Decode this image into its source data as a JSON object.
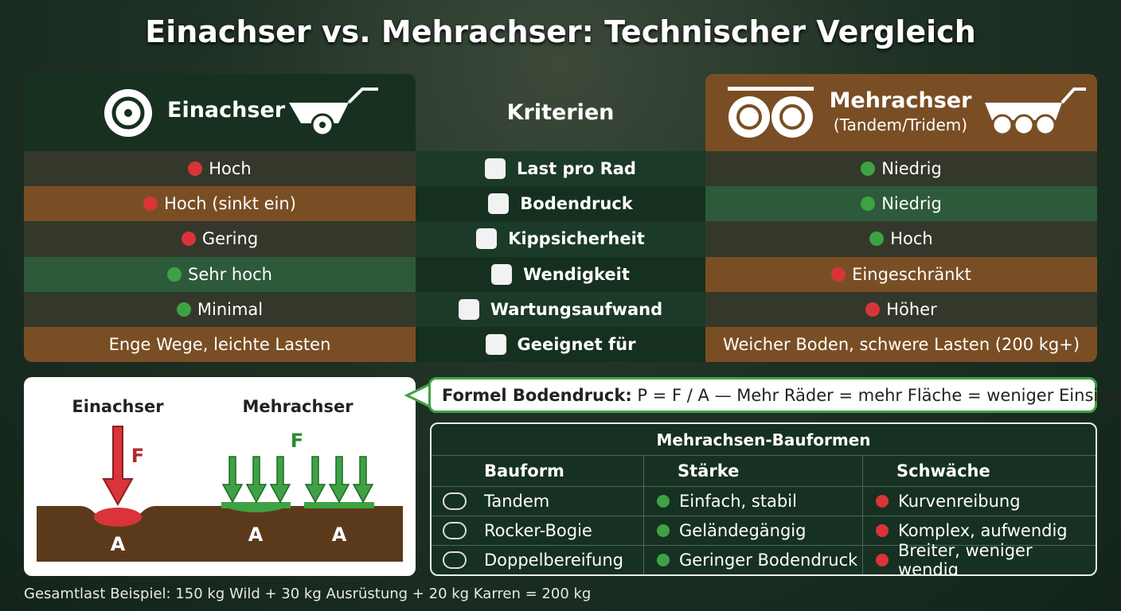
{
  "title": "Einachser vs. Mehrachser: Technischer Vergleich",
  "comparison": {
    "left_header": "Einachser",
    "center_header": "Kriterien",
    "right_header": {
      "title": "Mehrachser",
      "subtitle": "(Tandem/Tridem)"
    },
    "rows": [
      {
        "left": {
          "text": "Hoch",
          "dot": "red"
        },
        "criterion": "Last pro Rad",
        "right": {
          "text": "Niedrig",
          "dot": "green"
        }
      },
      {
        "left": {
          "text": "Hoch (sinkt ein)",
          "dot": "red"
        },
        "criterion": "Bodendruck",
        "right": {
          "text": "Niedrig",
          "dot": "green"
        }
      },
      {
        "left": {
          "text": "Gering",
          "dot": "red"
        },
        "criterion": "Kippsicherheit",
        "right": {
          "text": "Hoch",
          "dot": "green"
        }
      },
      {
        "left": {
          "text": "Sehr hoch",
          "dot": "green"
        },
        "criterion": "Wendigkeit",
        "right": {
          "text": "Eingeschränkt",
          "dot": "red"
        }
      },
      {
        "left": {
          "text": "Minimal",
          "dot": "green"
        },
        "criterion": "Wartungsaufwand",
        "right": {
          "text": "Höher",
          "dot": "red"
        }
      },
      {
        "left": {
          "text": "Enge Wege, leichte Lasten"
        },
        "criterion": "Geeignet für",
        "right": {
          "text": "Weicher Boden, schwere Lasten (200 kg+)"
        }
      }
    ]
  },
  "diagram": {
    "labels": [
      "Einachser",
      "Mehrachser"
    ],
    "force_labels": [
      "F",
      "F"
    ],
    "area_labels": [
      "A",
      "A",
      "A"
    ]
  },
  "formula": {
    "label": "Formel Bodendruck:",
    "text": "P = F / A — Mehr Räder = mehr Fläche = weniger Einsinken"
  },
  "table": {
    "title": "Mehrachsen-Bauformen",
    "headers": [
      "Bauform",
      "Stärke",
      "Schwäche"
    ],
    "rows": [
      [
        "Tandem",
        "Einfach, stabil",
        "Kurvenreibung"
      ],
      [
        "Rocker-Bogie",
        "Geländegängig",
        "Komplex, aufwendig"
      ],
      [
        "Doppelbereifung",
        "Geringer Bodendruck",
        "Breiter, weniger wendig"
      ]
    ]
  },
  "footer": "Gesamtlast Beispiel: 150 kg Wild + 30 kg Ausrüstung + 20 kg Karren = 200 kg"
}
